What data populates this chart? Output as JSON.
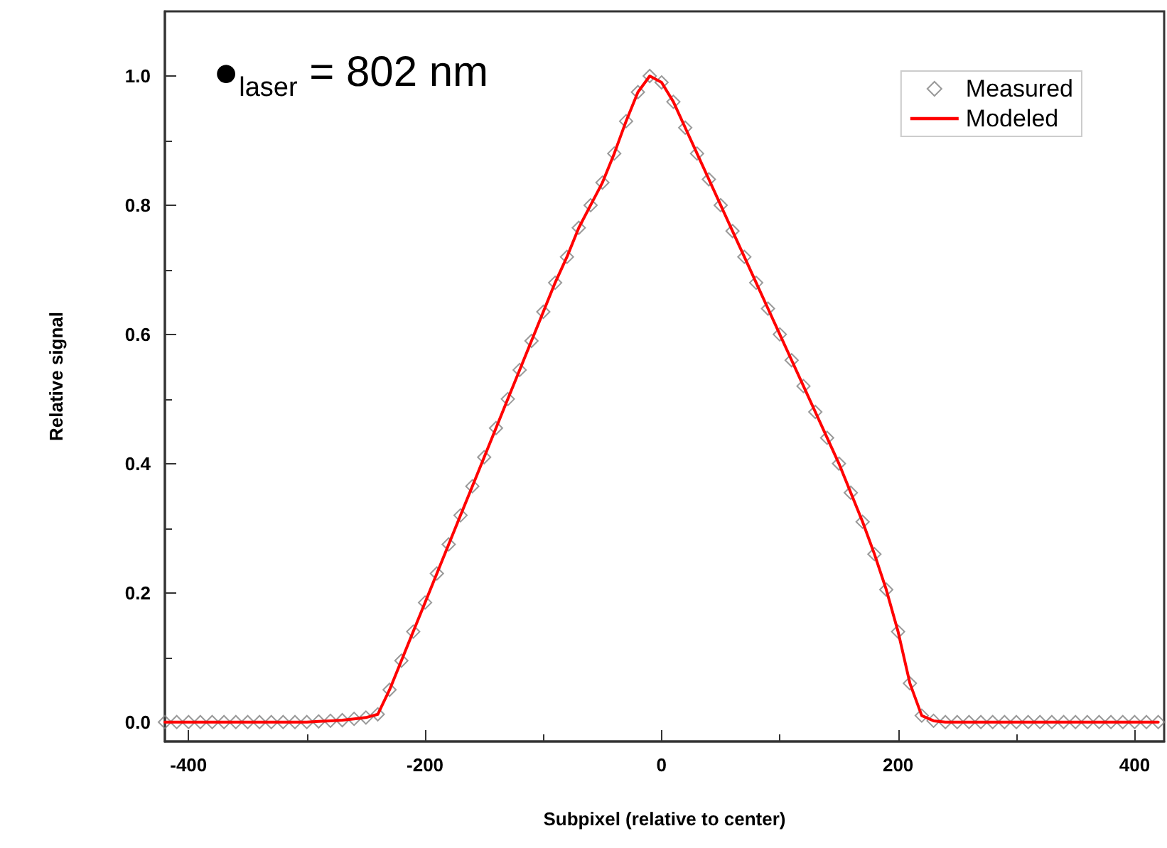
{
  "chart_data": {
    "type": "line",
    "xlabel": "Subpixel (relative to center)",
    "ylabel": "Relative signal",
    "annotations": [
      "●$_{laser}$ = 802 nm"
    ],
    "xlim": [
      -420,
      425
    ],
    "xticks": [
      -400,
      -200,
      0,
      200,
      400
    ],
    "ylim": [
      -0.03,
      1.1
    ],
    "yticks": [
      {
        "value": 0,
        "label": "0.0"
      },
      0.2,
      0.4,
      0.6,
      0.8,
      {
        "value": 1,
        "label": "1.0"
      }
    ],
    "legend": "top right",
    "x": [
      -420,
      -410,
      -400,
      -390,
      -380,
      -370,
      -360,
      -350,
      -340,
      -330,
      -320,
      -310,
      -300,
      -290,
      -280,
      -270,
      -260,
      -250,
      -240,
      -230,
      -220,
      -210,
      -200,
      -190,
      -180,
      -170,
      -160,
      -150,
      -140,
      -130,
      -120,
      -110,
      -100,
      -90,
      -80,
      -70,
      -60,
      -50,
      -40,
      -30,
      -20,
      -10,
      0,
      10,
      20,
      30,
      40,
      50,
      60,
      70,
      80,
      90,
      100,
      110,
      120,
      130,
      140,
      150,
      160,
      170,
      180,
      190,
      200,
      210,
      220,
      230,
      240,
      250,
      260,
      270,
      280,
      290,
      300,
      310,
      320,
      330,
      340,
      350,
      360,
      370,
      380,
      390,
      400,
      410,
      420
    ],
    "series": [
      {
        "name": "Measured",
        "type": "scatter",
        "marker": "diamond",
        "color": "#808080",
        "values": [
          0,
          0,
          0,
          0,
          0,
          0,
          0,
          0,
          0,
          0,
          0,
          0,
          0,
          0.001,
          0.002,
          0.003,
          0.005,
          0.007,
          0.012,
          0.05,
          0.095,
          0.14,
          0.185,
          0.23,
          0.275,
          0.32,
          0.365,
          0.41,
          0.455,
          0.5,
          0.545,
          0.59,
          0.635,
          0.68,
          0.72,
          0.765,
          0.8,
          0.835,
          0.88,
          0.93,
          0.975,
          1,
          0.99,
          0.96,
          0.92,
          0.88,
          0.84,
          0.8,
          0.76,
          0.72,
          0.68,
          0.64,
          0.6,
          0.56,
          0.52,
          0.48,
          0.44,
          0.4,
          0.355,
          0.31,
          0.26,
          0.205,
          0.14,
          0.06,
          0.01,
          0.002,
          0,
          0,
          0,
          0,
          0,
          0,
          0,
          0,
          0,
          0,
          0,
          0,
          0,
          0,
          0,
          0,
          0,
          0,
          0
        ]
      },
      {
        "name": "Modeled",
        "marker": "none",
        "color": "#ff0000",
        "values": [
          0,
          0,
          0,
          0,
          0,
          0,
          0,
          0,
          0,
          0,
          0,
          0,
          0,
          0.001,
          0.002,
          0.003,
          0.005,
          0.007,
          0.012,
          0.05,
          0.095,
          0.14,
          0.185,
          0.23,
          0.275,
          0.32,
          0.365,
          0.41,
          0.455,
          0.5,
          0.545,
          0.59,
          0.635,
          0.68,
          0.72,
          0.765,
          0.8,
          0.835,
          0.88,
          0.93,
          0.975,
          1,
          0.99,
          0.96,
          0.92,
          0.88,
          0.84,
          0.8,
          0.76,
          0.72,
          0.68,
          0.64,
          0.6,
          0.56,
          0.52,
          0.48,
          0.44,
          0.4,
          0.355,
          0.31,
          0.26,
          0.205,
          0.14,
          0.06,
          0.01,
          0.002,
          0,
          0,
          0,
          0,
          0,
          0,
          0,
          0,
          0,
          0,
          0,
          0,
          0,
          0,
          0,
          0,
          0,
          0,
          0
        ]
      }
    ]
  }
}
